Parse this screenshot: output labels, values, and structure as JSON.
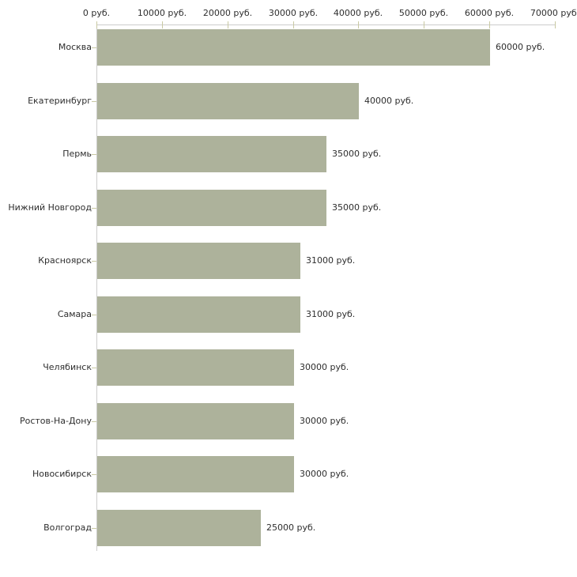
{
  "chart_data": {
    "type": "bar",
    "orientation": "horizontal",
    "title": "",
    "xlabel": "",
    "ylabel": "",
    "unit_suffix": " руб.",
    "xlim": [
      0,
      70000
    ],
    "grid": false,
    "legend_position": "none",
    "x_tick_values": [
      0,
      10000,
      20000,
      30000,
      40000,
      50000,
      60000,
      70000
    ],
    "x_tick_labels": [
      "0 руб.",
      "10000 руб.",
      "20000 руб.",
      "30000 руб.",
      "40000 руб.",
      "50000 руб.",
      "60000 руб.",
      "70000 руб."
    ],
    "categories": [
      "Москва",
      "Екатеринбург",
      "Пермь",
      "Нижний Новгород",
      "Красноярск",
      "Самара",
      "Челябинск",
      "Ростов-На-Дону",
      "Новосибирск",
      "Волгоград"
    ],
    "values": [
      60000,
      40000,
      35000,
      35000,
      31000,
      31000,
      30000,
      30000,
      30000,
      25000
    ],
    "bar_labels": [
      "60000 руб.",
      "40000 руб.",
      "35000 руб.",
      "35000 руб.",
      "31000 руб.",
      "31000 руб.",
      "30000 руб.",
      "30000 руб.",
      "30000 руб.",
      "25000 руб."
    ],
    "colors": {
      "bar": "#adb29b",
      "axis_line": "#cccccc",
      "tick": "#c9c9a3",
      "text": "#2e2e2e",
      "background": "#ffffff"
    }
  }
}
